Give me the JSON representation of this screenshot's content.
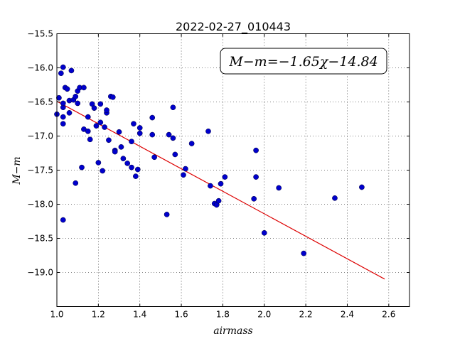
{
  "chart_data": {
    "type": "scatter",
    "title": "2022-02-27_010443",
    "xlabel": "airmass",
    "ylabel": "M−m",
    "annotation": "M−m=−1.65χ−14.84",
    "xlim": [
      1.0,
      2.7
    ],
    "ylim": [
      -19.5,
      -15.5
    ],
    "y_inverted": false,
    "grid": true,
    "x_ticks": [
      "1.0",
      "1.2",
      "1.4",
      "1.6",
      "1.8",
      "2.0",
      "2.2",
      "2.4",
      "2.6"
    ],
    "y_ticks": [
      "−15.5",
      "−16.0",
      "−16.5",
      "−17.0",
      "−17.5",
      "−18.0",
      "−18.5",
      "−19.0"
    ],
    "point_color": "#0000cc",
    "fit_color": "#dd0000",
    "fit_line": {
      "slope": -1.65,
      "intercept": -14.84,
      "x_start": 1.0,
      "x_end": 2.58
    },
    "points": [
      [
        1.0,
        -16.68
      ],
      [
        1.01,
        -16.44
      ],
      [
        1.02,
        -16.08
      ],
      [
        1.03,
        -15.99
      ],
      [
        1.03,
        -16.58
      ],
      [
        1.03,
        -16.72
      ],
      [
        1.03,
        -16.82
      ],
      [
        1.03,
        -16.52
      ],
      [
        1.03,
        -18.23
      ],
      [
        1.04,
        -16.29
      ],
      [
        1.05,
        -16.31
      ],
      [
        1.06,
        -16.48
      ],
      [
        1.06,
        -16.66
      ],
      [
        1.07,
        -16.04
      ],
      [
        1.08,
        -16.47
      ],
      [
        1.09,
        -17.69
      ],
      [
        1.09,
        -16.42
      ],
      [
        1.1,
        -16.34
      ],
      [
        1.1,
        -16.52
      ],
      [
        1.11,
        -16.29
      ],
      [
        1.12,
        -17.46
      ],
      [
        1.13,
        -16.29
      ],
      [
        1.13,
        -16.9
      ],
      [
        1.15,
        -16.93
      ],
      [
        1.15,
        -16.72
      ],
      [
        1.16,
        -17.05
      ],
      [
        1.17,
        -16.53
      ],
      [
        1.18,
        -16.59
      ],
      [
        1.19,
        -16.85
      ],
      [
        1.2,
        -17.39
      ],
      [
        1.21,
        -16.53
      ],
      [
        1.21,
        -16.8
      ],
      [
        1.22,
        -17.51
      ],
      [
        1.23,
        -16.87
      ],
      [
        1.24,
        -16.66
      ],
      [
        1.24,
        -16.62
      ],
      [
        1.25,
        -17.06
      ],
      [
        1.26,
        -16.42
      ],
      [
        1.27,
        -16.43
      ],
      [
        1.28,
        -17.21
      ],
      [
        1.28,
        -17.23
      ],
      [
        1.3,
        -16.94
      ],
      [
        1.31,
        -17.16
      ],
      [
        1.32,
        -17.33
      ],
      [
        1.34,
        -17.4
      ],
      [
        1.36,
        -17.46
      ],
      [
        1.36,
        -17.08
      ],
      [
        1.37,
        -16.82
      ],
      [
        1.38,
        -17.59
      ],
      [
        1.39,
        -17.49
      ],
      [
        1.4,
        -16.88
      ],
      [
        1.4,
        -16.96
      ],
      [
        1.46,
        -16.98
      ],
      [
        1.46,
        -16.73
      ],
      [
        1.47,
        -17.31
      ],
      [
        1.53,
        -18.15
      ],
      [
        1.54,
        -16.98
      ],
      [
        1.56,
        -17.03
      ],
      [
        1.56,
        -16.58
      ],
      [
        1.57,
        -17.27
      ],
      [
        1.61,
        -17.57
      ],
      [
        1.62,
        -17.48
      ],
      [
        1.65,
        -17.11
      ],
      [
        1.73,
        -16.93
      ],
      [
        1.74,
        -17.73
      ],
      [
        1.76,
        -17.99
      ],
      [
        1.77,
        -18.01
      ],
      [
        1.78,
        -17.95
      ],
      [
        1.79,
        -17.7
      ],
      [
        1.81,
        -17.6
      ],
      [
        1.95,
        -17.92
      ],
      [
        1.96,
        -17.21
      ],
      [
        1.96,
        -17.6
      ],
      [
        2.0,
        -18.42
      ],
      [
        2.07,
        -17.76
      ],
      [
        2.19,
        -18.72
      ],
      [
        2.34,
        -17.91
      ],
      [
        2.47,
        -17.75
      ]
    ]
  }
}
